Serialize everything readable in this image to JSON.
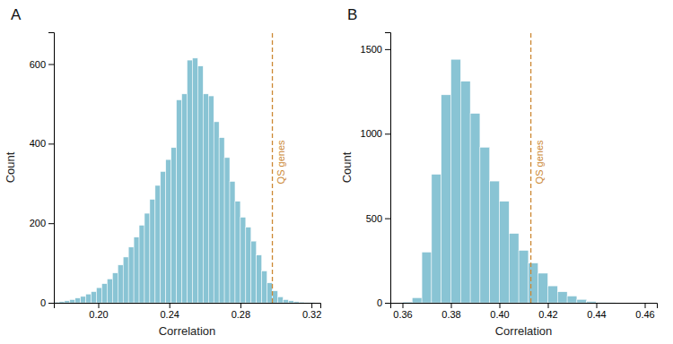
{
  "chart_data": [
    {
      "type": "histogram",
      "title": "A",
      "color": "#89c4d4",
      "bins": [
        0.175,
        0.178,
        0.181,
        0.184,
        0.187,
        0.19,
        0.193,
        0.196,
        0.199,
        0.202,
        0.205,
        0.208,
        0.211,
        0.214,
        0.217,
        0.22,
        0.223,
        0.226,
        0.229,
        0.232,
        0.235,
        0.238,
        0.241,
        0.244,
        0.247,
        0.25,
        0.253,
        0.256,
        0.259,
        0.262,
        0.265,
        0.268,
        0.271,
        0.274,
        0.277,
        0.28,
        0.283,
        0.286,
        0.289,
        0.292,
        0.295,
        0.298,
        0.301,
        0.304,
        0.307,
        0.31,
        0.313,
        0.316,
        0.319,
        0.322,
        0.325
      ],
      "values": [
        2,
        3,
        5,
        8,
        12,
        16,
        22,
        28,
        38,
        48,
        60,
        75,
        95,
        115,
        140,
        165,
        195,
        225,
        260,
        295,
        330,
        360,
        390,
        510,
        525,
        610,
        615,
        595,
        525,
        520,
        455,
        415,
        365,
        305,
        255,
        215,
        190,
        155,
        120,
        80,
        50,
        30,
        15,
        8,
        5,
        3,
        2,
        1,
        1,
        0
      ],
      "annotations": [
        {
          "x": 0.298,
          "text": "QS genes",
          "color": "#cc8833"
        }
      ],
      "x_label": "Correlation",
      "y_label": "Count",
      "xlim": [
        0.175,
        0.325
      ],
      "ylim": [
        0,
        680
      ],
      "xticks": [
        {
          "value": 0.2,
          "label": "0.20"
        },
        0.24,
        0.28,
        0.32
      ],
      "yticks": [
        0,
        200,
        400,
        600
      ]
    },
    {
      "type": "histogram",
      "title": "B",
      "color": "#89c4d4",
      "bins": [
        0.36,
        0.364,
        0.368,
        0.372,
        0.376,
        0.38,
        0.384,
        0.388,
        0.392,
        0.396,
        0.4,
        0.404,
        0.408,
        0.412,
        0.416,
        0.42,
        0.424,
        0.428,
        0.432,
        0.436,
        0.44,
        0.444,
        0.448
      ],
      "values": [
        5,
        30,
        300,
        760,
        1230,
        1440,
        1310,
        1120,
        920,
        720,
        600,
        410,
        310,
        235,
        175,
        100,
        65,
        40,
        20,
        8,
        3,
        1
      ],
      "annotations": [
        {
          "x": 0.413,
          "text": "QS genes",
          "color": "#cc8833"
        }
      ],
      "x_label": "Correlation",
      "y_label": "Count",
      "xlim": [
        0.355,
        0.465
      ],
      "ylim": [
        0,
        1600
      ],
      "xticks": [
        0.36,
        0.38,
        {
          "value": 0.4,
          "label": "0.40"
        },
        0.42,
        0.44,
        0.46
      ],
      "yticks": [
        0,
        500,
        1000,
        1500
      ]
    }
  ]
}
